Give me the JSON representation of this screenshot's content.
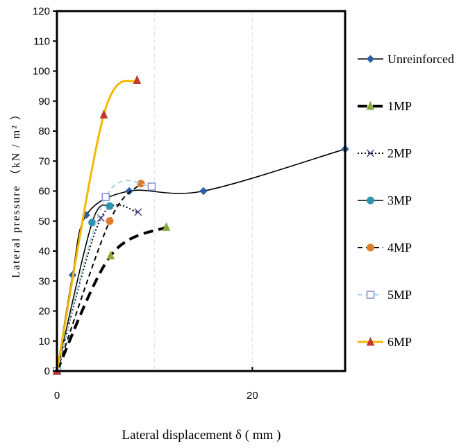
{
  "chart_data": {
    "type": "line",
    "xlabel": "Lateral displacement δ ( mm )",
    "ylabel": "Lateral pressure （kN / m² ）",
    "xlim": [
      0,
      29.5
    ],
    "ylim": [
      0,
      120
    ],
    "xticks": [
      0,
      20
    ],
    "yticks": [
      0,
      10,
      20,
      30,
      40,
      50,
      60,
      70,
      80,
      90,
      100,
      110,
      120
    ],
    "grid": "vertical dashed",
    "legend_position": "right",
    "series": [
      {
        "name": "Unreinforced",
        "color": "#000000",
        "line": "solid",
        "marker": "diamond",
        "markerColor": "#2e5ea8",
        "x": [
          0,
          1.6,
          3.0,
          7.4,
          15.0,
          29.5
        ],
        "y": [
          0,
          32,
          52,
          60,
          60,
          74
        ]
      },
      {
        "name": "1MP",
        "color": "#000000",
        "line": "thickdash",
        "marker": "triangle",
        "markerColor": "#8aaa3a",
        "x": [
          0,
          5.5,
          11.2
        ],
        "y": [
          0,
          38.5,
          48
        ]
      },
      {
        "name": "2MP",
        "color": "#000000",
        "line": "dotted",
        "marker": "x",
        "markerColor": "#4a3e8a",
        "x": [
          0,
          4.5,
          8.3
        ],
        "y": [
          0,
          51,
          53
        ]
      },
      {
        "name": "3MP",
        "color": "#000000",
        "line": "solid",
        "marker": "circle",
        "markerColor": "#2c95b0",
        "x": [
          0,
          3.6,
          5.4
        ],
        "y": [
          0,
          49.5,
          55
        ]
      },
      {
        "name": "4MP",
        "color": "#000000",
        "line": "dash",
        "marker": "circle",
        "markerColor": "#e07b2c",
        "x": [
          0,
          5.4,
          8.6
        ],
        "y": [
          0,
          50,
          62.5
        ]
      },
      {
        "name": "5MP",
        "color": "#a8d4e6",
        "line": "dash",
        "marker": "square",
        "markerColor": "#7b8fd0",
        "x": [
          0,
          5.0,
          9.7
        ],
        "y": [
          0,
          58,
          61.5
        ]
      },
      {
        "name": "6MP",
        "color": "#f5b800",
        "line": "solid",
        "marker": "triangle",
        "markerColor": "#c0392b",
        "x": [
          0,
          4.8,
          8.2
        ],
        "y": [
          0,
          85.5,
          97
        ]
      }
    ]
  }
}
